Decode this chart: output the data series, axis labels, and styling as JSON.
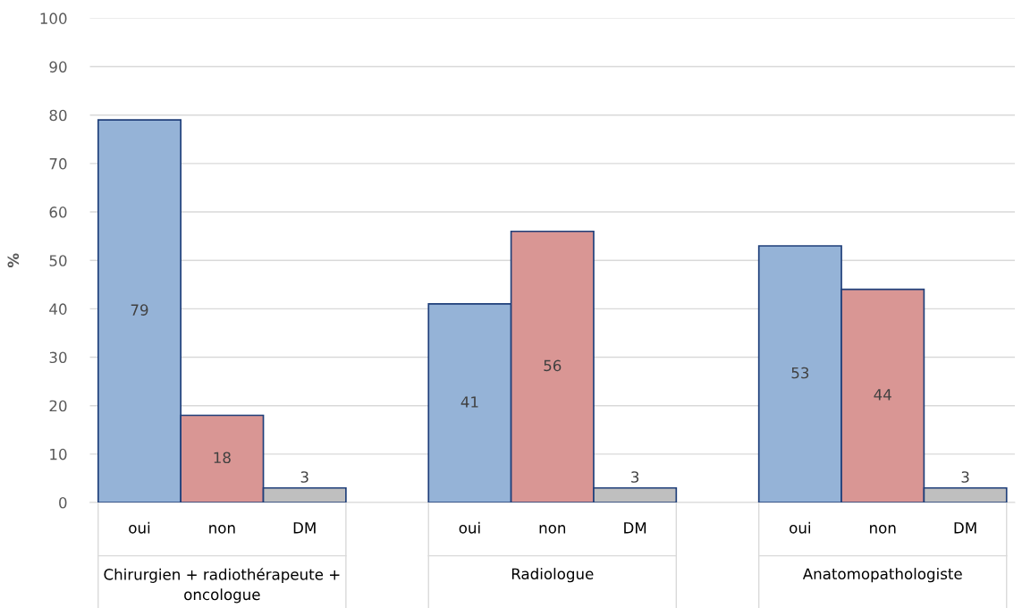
{
  "chart_data": {
    "type": "bar",
    "ylabel": "%",
    "categories": [
      "Chirurgien + radiothérapeute + oncologue",
      "Radiologue",
      "Anatomopathologiste"
    ],
    "series": [
      {
        "name": "oui",
        "color": "#95b3d7",
        "values": [
          79,
          41,
          53
        ]
      },
      {
        "name": "non",
        "color": "#d99694",
        "values": [
          18,
          56,
          44
        ]
      },
      {
        "name": "DM",
        "color": "#bfbfbf",
        "values": [
          3,
          3,
          3
        ]
      }
    ],
    "ylim": [
      0,
      100
    ],
    "yticks": [
      0,
      10,
      20,
      30,
      40,
      50,
      60,
      70,
      80,
      90,
      100
    ],
    "grid": "y",
    "data_labels": true
  }
}
